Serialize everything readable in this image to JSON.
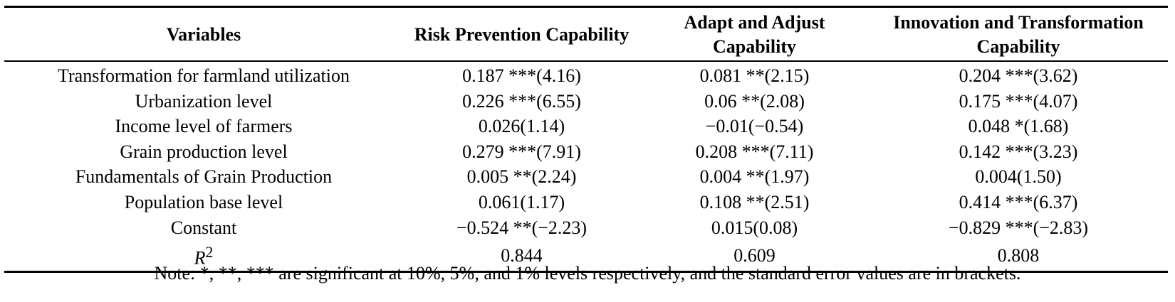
{
  "table": {
    "headers": [
      "Variables",
      "Risk Prevention Capability",
      "Adapt and Adjust Capability",
      "Innovation and Transformation Capability"
    ],
    "rows": [
      [
        "Transformation for farmland utilization",
        "0.187 ***(4.16)",
        "0.081 **(2.15)",
        "0.204 ***(3.62)"
      ],
      [
        "Urbanization level",
        "0.226 ***(6.55)",
        "0.06 **(2.08)",
        "0.175 ***(4.07)"
      ],
      [
        "Income level of farmers",
        "0.026(1.14)",
        "−0.01(−0.54)",
        "0.048 *(1.68)"
      ],
      [
        "Grain production level",
        "0.279 ***(7.91)",
        "0.208 ***(7.11)",
        "0.142 ***(3.23)"
      ],
      [
        "Fundamentals of Grain Production",
        "0.005 **(2.24)",
        "0.004 **(1.97)",
        "0.004(1.50)"
      ],
      [
        "Population base level",
        "0.061(1.17)",
        "0.108 **(2.51)",
        "0.414 ***(6.37)"
      ],
      [
        "Constant",
        "−0.524 **(−2.23)",
        "0.015(0.08)",
        "−0.829 ***(−2.83)"
      ]
    ],
    "r2_row": {
      "label": "R",
      "label_superscript": "2",
      "values": [
        "0.844",
        "0.609",
        "0.808"
      ]
    }
  },
  "note": "Note: *, **, *** are significant at 10%, 5%, and 1% levels respectively, and the standard error values are in brackets."
}
